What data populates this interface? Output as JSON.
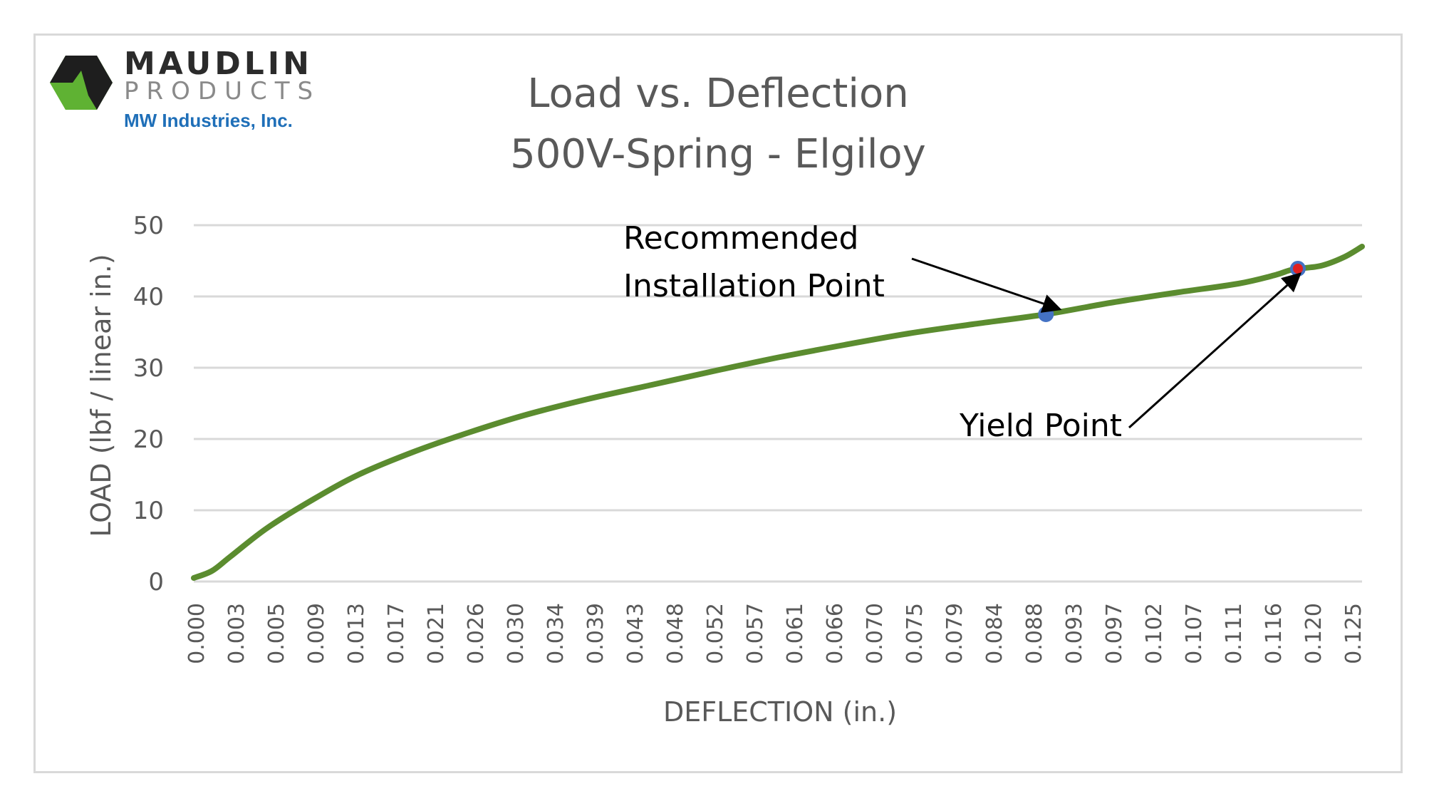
{
  "logo": {
    "name_top": "MAUDLIN",
    "name_bottom": "PRODUCTS",
    "parent": "MW Industries, Inc.",
    "colors": {
      "hex_green": "#5fb233",
      "hex_dark": "#1e1e1e",
      "parent_blue": "#1f6fb8"
    }
  },
  "chart_data": {
    "type": "line",
    "title": [
      "Load vs. Deflection",
      "500V-Spring - Elgiloy"
    ],
    "xlabel": "DEFLECTION (in.)",
    "ylabel": "LOAD (lbf / linear in.)",
    "ylim": [
      0,
      50
    ],
    "xlim": [
      0.0,
      0.1275
    ],
    "y_ticks": [
      "0",
      "10",
      "20",
      "30",
      "40",
      "50"
    ],
    "x_tick_labels": [
      "0.000",
      "0.003",
      "0.005",
      "0.009",
      "0.013",
      "0.017",
      "0.021",
      "0.026",
      "0.030",
      "0.034",
      "0.039",
      "0.043",
      "0.048",
      "0.052",
      "0.057",
      "0.061",
      "0.066",
      "0.070",
      "0.075",
      "0.079",
      "0.084",
      "0.088",
      "0.093",
      "0.097",
      "0.102",
      "0.107",
      "0.111",
      "0.116",
      "0.120",
      "0.125"
    ],
    "grid": "horizontal",
    "line_color": "#5b8c2f",
    "series": [
      {
        "x": [
          0.0,
          0.002,
          0.004,
          0.008,
          0.013,
          0.018,
          0.024,
          0.03,
          0.036,
          0.043,
          0.05,
          0.057,
          0.064,
          0.071,
          0.078,
          0.085,
          0.093,
          0.1,
          0.107,
          0.114,
          0.118,
          0.12,
          0.123,
          0.1255,
          0.1275
        ],
        "y": [
          0.5,
          1.5,
          3.5,
          7.5,
          11.5,
          15.0,
          18.2,
          20.9,
          23.3,
          25.6,
          27.6,
          29.6,
          31.5,
          33.2,
          34.8,
          36.1,
          37.5,
          39.1,
          40.5,
          41.8,
          43.0,
          43.8,
          44.3,
          45.5,
          47.0
        ]
      }
    ],
    "markers": [
      {
        "label": "Recommended Installation Point",
        "x": 0.093,
        "y": 37.5,
        "color": "#4472c4",
        "fill": "#4472c4"
      },
      {
        "label": "Yield Point",
        "x": 0.1205,
        "y": 43.9,
        "color": "#4472c4",
        "fill": "#e02020"
      }
    ],
    "annotations": [
      {
        "lines": [
          "Recommended",
          "Installation Point"
        ],
        "points_to": "recommended"
      },
      {
        "lines": [
          "Yield Point"
        ],
        "points_to": "yield"
      }
    ]
  }
}
